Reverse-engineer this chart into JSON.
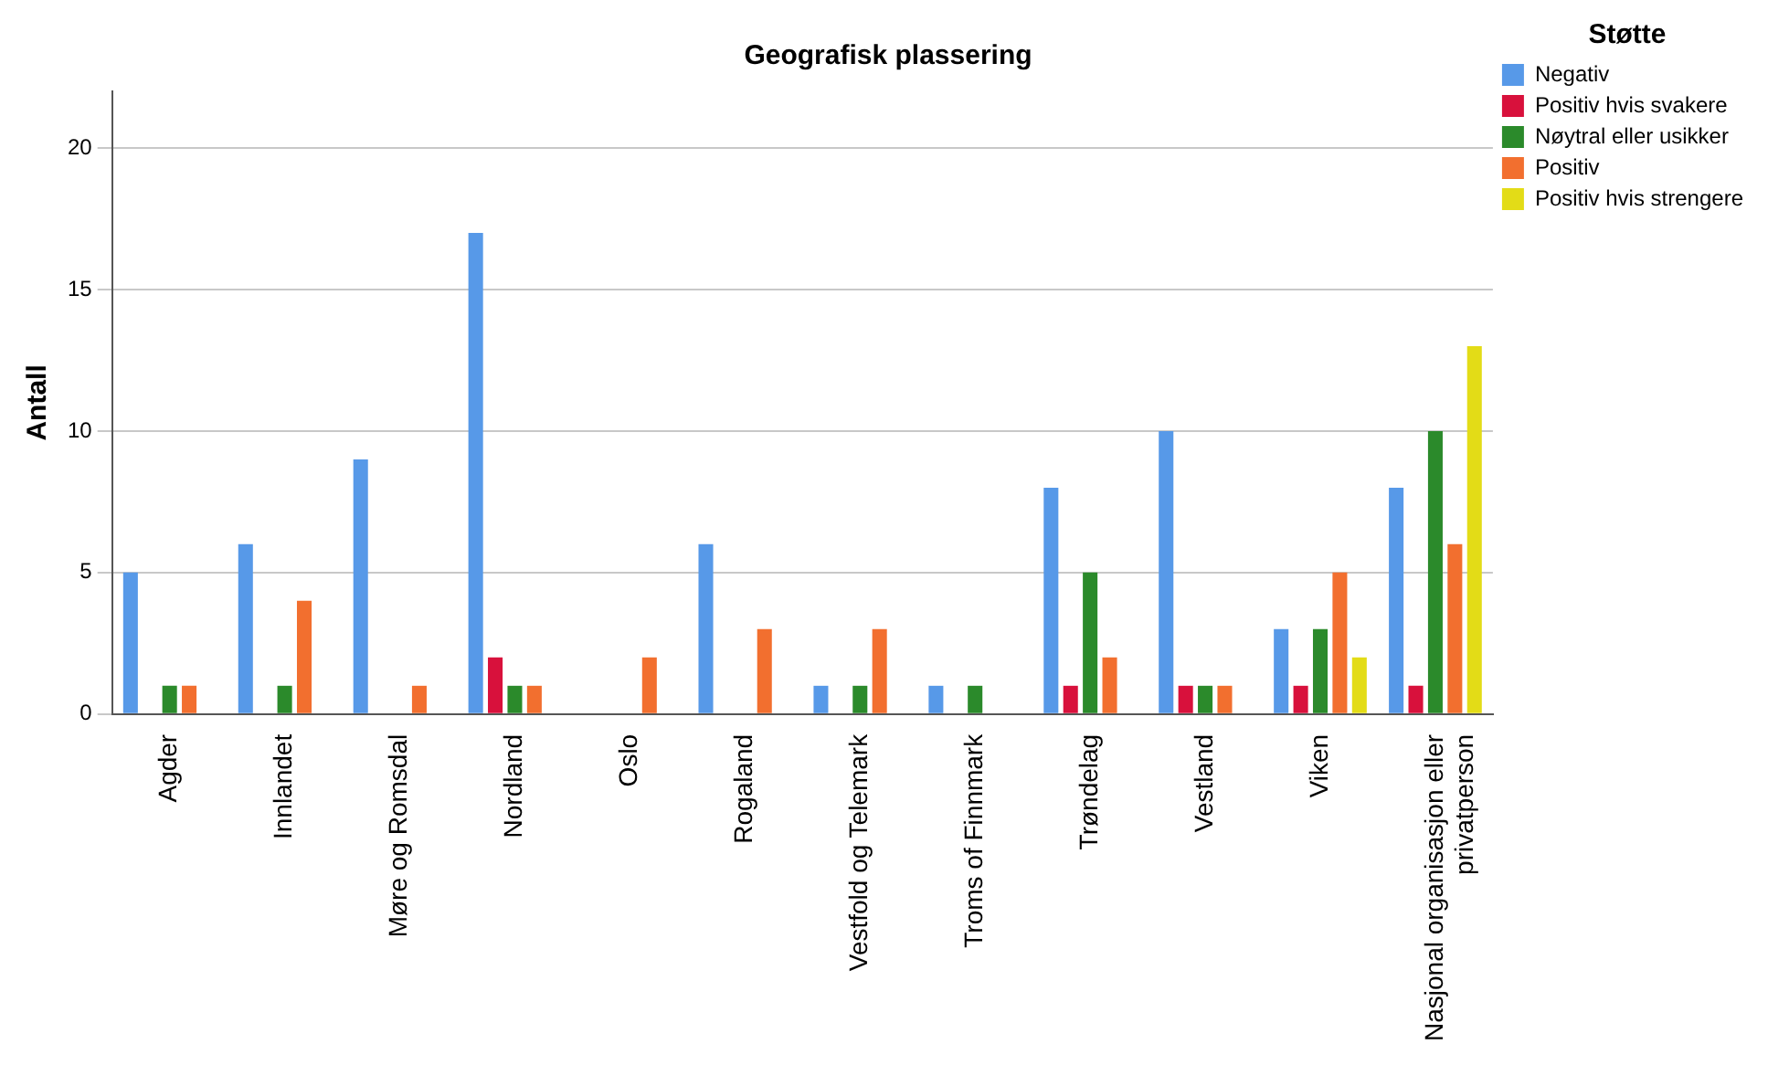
{
  "chart_data": {
    "type": "bar",
    "title": "Geografisk plassering",
    "ylabel": "Antall",
    "legend_title": "Støtte",
    "categories": [
      "Agder",
      "Innlandet",
      "Møre og Romsdal",
      "Nordland",
      "Oslo",
      "Rogaland",
      "Vestfold og Telemark",
      "Troms of Finnmark",
      "Trøndelag",
      "Vestland",
      "Viken",
      "Nasjonal organisasjon eller privatperson"
    ],
    "series": [
      {
        "name": "Negativ",
        "color": "#5799e8",
        "values": [
          5,
          6,
          9,
          17,
          null,
          6,
          1,
          1,
          8,
          10,
          3,
          8
        ]
      },
      {
        "name": "Positiv hvis svakere",
        "color": "#d8113c",
        "values": [
          null,
          null,
          null,
          2,
          null,
          null,
          null,
          null,
          1,
          1,
          1,
          1
        ]
      },
      {
        "name": "Nøytral eller usikker",
        "color": "#2b8a2b",
        "values": [
          1,
          1,
          null,
          1,
          null,
          null,
          1,
          1,
          5,
          1,
          3,
          10
        ]
      },
      {
        "name": "Positiv",
        "color": "#f26f2f",
        "values": [
          1,
          4,
          1,
          1,
          2,
          3,
          3,
          null,
          2,
          1,
          5,
          6
        ]
      },
      {
        "name": "Positiv hvis strengere",
        "color": "#e3dc17",
        "values": [
          null,
          null,
          null,
          null,
          null,
          null,
          null,
          null,
          null,
          null,
          2,
          13
        ]
      }
    ],
    "ylim": [
      0,
      22
    ],
    "yticks": [
      0,
      5,
      10,
      15,
      20
    ],
    "grid": "y",
    "legend": "right"
  }
}
